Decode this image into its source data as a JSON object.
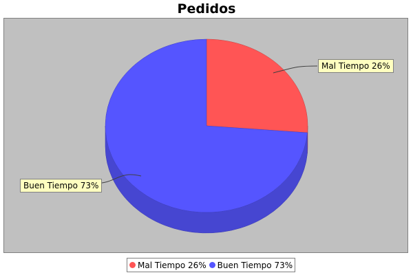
{
  "chart_data": {
    "type": "pie",
    "title": "Pedidos",
    "slices": [
      {
        "name": "Mal Tiempo",
        "value": 26,
        "label": "Mal Tiempo 26%",
        "color": "#ff5555"
      },
      {
        "name": "Buen Tiempo",
        "value": 73,
        "label": "Buen Tiempo 73%",
        "color": "#5555ff"
      }
    ],
    "legend": {
      "placement": "bottom",
      "items": [
        "Mal Tiempo 26%",
        "Buen Tiempo 73%"
      ]
    },
    "plot_background": "#c0c0c0",
    "style": "3d"
  }
}
